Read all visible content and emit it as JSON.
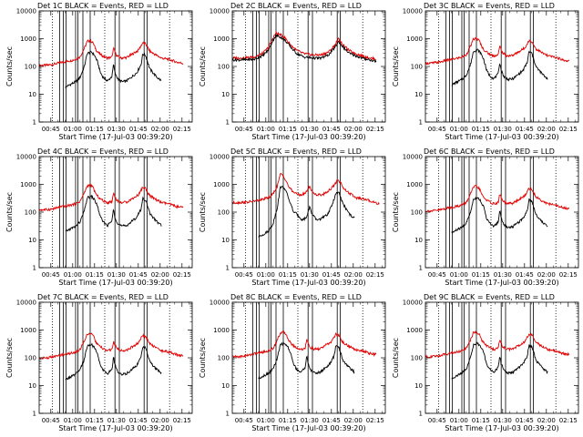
{
  "chart_data": [
    {
      "type": "line",
      "title": "Det 1C BLACK = Events, RED = LLD",
      "xlabel": "Start Time (17-Jul-03 00:39:20)",
      "ylabel": "Counts/sec",
      "profile": "a",
      "scale": 1.0
    },
    {
      "type": "line",
      "title": "Det 2C BLACK = Events, RED = LLD",
      "xlabel": "Start Time (17-Jul-03 00:39:20)",
      "ylabel": "Counts/sec",
      "profile": "b",
      "scale": 1.0
    },
    {
      "type": "line",
      "title": "Det 3C BLACK = Events, RED = LLD",
      "xlabel": "Start Time (17-Jul-03 00:39:20)",
      "ylabel": "Counts/sec",
      "profile": "a",
      "scale": 1.2
    },
    {
      "type": "line",
      "title": "Det 4C BLACK = Events, RED = LLD",
      "xlabel": "Start Time (17-Jul-03 00:39:20)",
      "ylabel": "Counts/sec",
      "profile": "a",
      "scale": 1.1
    },
    {
      "type": "line",
      "title": "Det 5C BLACK = Events, RED = LLD",
      "xlabel": "Start Time (17-Jul-03 00:39:20)",
      "ylabel": "Counts/sec",
      "profile": "c",
      "scale": 1.3
    },
    {
      "type": "line",
      "title": "Det 6C BLACK = Events, RED = LLD",
      "xlabel": "Start Time (17-Jul-03 00:39:20)",
      "ylabel": "Counts/sec",
      "profile": "a",
      "scale": 1.0
    },
    {
      "type": "line",
      "title": "Det 7C BLACK = Events, RED = LLD",
      "xlabel": "Start Time (17-Jul-03 00:39:20)",
      "ylabel": "Counts/sec",
      "profile": "a",
      "scale": 0.9
    },
    {
      "type": "line",
      "title": "Det 8C BLACK = Events, RED = LLD",
      "xlabel": "Start Time (17-Jul-03 00:39:20)",
      "ylabel": "Counts/sec",
      "profile": "a",
      "scale": 1.0
    },
    {
      "type": "line",
      "title": "Det 9C BLACK = Events, RED = LLD",
      "xlabel": "Start Time (17-Jul-03 00:39:20)",
      "ylabel": "Counts/sec",
      "profile": "a",
      "scale": 1.0
    }
  ],
  "axes": {
    "x_ticks": [
      "00:45",
      "01:00",
      "01:15",
      "01:30",
      "01:45",
      "02:00",
      "02:15"
    ],
    "y_ticks": [
      "1",
      "10",
      "100",
      "1000",
      "10000"
    ],
    "xlim_min": [
      37,
      142
    ],
    "ylim": [
      1,
      10000
    ],
    "yscale": "log"
  },
  "markers": {
    "solid_min": [
      51,
      53.5,
      55.5,
      62,
      63.5,
      67,
      72,
      89,
      92,
      109,
      111
    ],
    "dotted_min": [
      46,
      82,
      126.5
    ]
  },
  "colors": {
    "events": "#000000",
    "lld": "#e00000"
  },
  "profiles": {
    "a": {
      "events": [
        [
          55,
          18
        ],
        [
          58,
          22
        ],
        [
          62,
          28
        ],
        [
          65,
          40
        ],
        [
          68,
          100
        ],
        [
          70,
          300
        ],
        [
          73,
          330
        ],
        [
          75,
          250
        ],
        [
          77,
          150
        ],
        [
          79,
          60
        ],
        [
          81,
          40
        ],
        [
          84,
          30
        ],
        [
          87,
          45
        ],
        [
          88,
          120
        ],
        [
          89,
          60
        ],
        [
          91,
          35
        ],
        [
          94,
          28
        ],
        [
          97,
          30
        ],
        [
          100,
          40
        ],
        [
          104,
          60
        ],
        [
          107,
          120
        ],
        [
          108,
          280
        ],
        [
          110,
          250
        ],
        [
          113,
          80
        ],
        [
          115,
          60
        ],
        [
          118,
          40
        ],
        [
          121,
          30
        ]
      ],
      "lld": [
        [
          37,
          110
        ],
        [
          42,
          110
        ],
        [
          47,
          120
        ],
        [
          52,
          140
        ],
        [
          58,
          160
        ],
        [
          62,
          180
        ],
        [
          65,
          220
        ],
        [
          68,
          450
        ],
        [
          70,
          800
        ],
        [
          72,
          850
        ],
        [
          74,
          700
        ],
        [
          76,
          400
        ],
        [
          78,
          300
        ],
        [
          81,
          230
        ],
        [
          84,
          200
        ],
        [
          87,
          220
        ],
        [
          88,
          450
        ],
        [
          90,
          250
        ],
        [
          93,
          200
        ],
        [
          97,
          210
        ],
        [
          101,
          280
        ],
        [
          105,
          380
        ],
        [
          108,
          700
        ],
        [
          110,
          650
        ],
        [
          113,
          350
        ],
        [
          117,
          260
        ],
        [
          121,
          200
        ],
        [
          126,
          180
        ],
        [
          132,
          140
        ],
        [
          136,
          130
        ]
      ]
    },
    "b": {
      "events": [
        [
          37,
          170
        ],
        [
          45,
          175
        ],
        [
          52,
          180
        ],
        [
          58,
          250
        ],
        [
          62,
          400
        ],
        [
          65,
          900
        ],
        [
          67,
          1300
        ],
        [
          70,
          1150
        ],
        [
          73,
          900
        ],
        [
          77,
          500
        ],
        [
          81,
          300
        ],
        [
          86,
          220
        ],
        [
          92,
          200
        ],
        [
          98,
          200
        ],
        [
          103,
          260
        ],
        [
          107,
          450
        ],
        [
          110,
          800
        ],
        [
          113,
          500
        ],
        [
          117,
          300
        ],
        [
          121,
          250
        ],
        [
          126,
          200
        ],
        [
          132,
          170
        ],
        [
          136,
          150
        ]
      ],
      "lld": [
        [
          37,
          200
        ],
        [
          45,
          205
        ],
        [
          52,
          220
        ],
        [
          58,
          300
        ],
        [
          62,
          500
        ],
        [
          65,
          1100
        ],
        [
          67,
          1600
        ],
        [
          70,
          1400
        ],
        [
          73,
          1100
        ],
        [
          77,
          600
        ],
        [
          81,
          380
        ],
        [
          86,
          290
        ],
        [
          92,
          260
        ],
        [
          98,
          260
        ],
        [
          103,
          330
        ],
        [
          107,
          550
        ],
        [
          110,
          1000
        ],
        [
          113,
          600
        ],
        [
          117,
          380
        ],
        [
          121,
          300
        ],
        [
          126,
          240
        ],
        [
          132,
          200
        ],
        [
          136,
          180
        ]
      ]
    },
    "c": {
      "events": [
        [
          55,
          10
        ],
        [
          58,
          12
        ],
        [
          62,
          16
        ],
        [
          65,
          30
        ],
        [
          68,
          120
        ],
        [
          70,
          650
        ],
        [
          73,
          550
        ],
        [
          75,
          300
        ],
        [
          77,
          150
        ],
        [
          79,
          80
        ],
        [
          82,
          60
        ],
        [
          85,
          40
        ],
        [
          88,
          50
        ],
        [
          90,
          120
        ],
        [
          92,
          60
        ],
        [
          95,
          40
        ],
        [
          98,
          45
        ],
        [
          102,
          60
        ],
        [
          105,
          120
        ],
        [
          108,
          350
        ],
        [
          110,
          400
        ],
        [
          112,
          200
        ],
        [
          115,
          100
        ],
        [
          118,
          60
        ],
        [
          121,
          45
        ]
      ],
      "lld": [
        [
          37,
          170
        ],
        [
          42,
          170
        ],
        [
          47,
          175
        ],
        [
          52,
          190
        ],
        [
          58,
          220
        ],
        [
          62,
          260
        ],
        [
          65,
          350
        ],
        [
          68,
          700
        ],
        [
          70,
          1800
        ],
        [
          72,
          1600
        ],
        [
          74,
          1000
        ],
        [
          76,
          600
        ],
        [
          78,
          450
        ],
        [
          81,
          350
        ],
        [
          84,
          320
        ],
        [
          87,
          360
        ],
        [
          90,
          650
        ],
        [
          92,
          400
        ],
        [
          95,
          320
        ],
        [
          99,
          330
        ],
        [
          103,
          450
        ],
        [
          107,
          700
        ],
        [
          109,
          1100
        ],
        [
          111,
          950
        ],
        [
          114,
          500
        ],
        [
          118,
          350
        ],
        [
          122,
          250
        ],
        [
          128,
          220
        ],
        [
          134,
          180
        ],
        [
          138,
          150
        ]
      ]
    }
  }
}
